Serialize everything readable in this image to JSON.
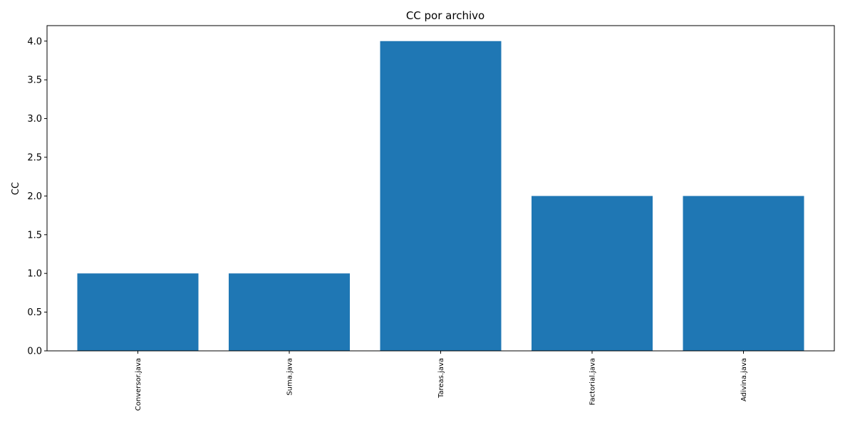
{
  "chart_data": {
    "type": "bar",
    "title": "CC por archivo",
    "xlabel": "",
    "ylabel": "CC",
    "categories": [
      "Conversor.java",
      "Suma.java",
      "Tareas.java",
      "Factorial.java",
      "Adivina.java"
    ],
    "values": [
      1,
      1,
      4,
      2,
      2
    ],
    "ylim": [
      0,
      4.2
    ],
    "yticks": [
      0.0,
      0.5,
      1.0,
      1.5,
      2.0,
      2.5,
      3.0,
      3.5,
      4.0
    ],
    "ytick_labels": [
      "0.0",
      "0.5",
      "1.0",
      "1.5",
      "2.0",
      "2.5",
      "3.0",
      "3.5",
      "4.0"
    ],
    "bar_color": "#1f77b4",
    "grid": false,
    "x_tick_rotation": "vertical"
  }
}
